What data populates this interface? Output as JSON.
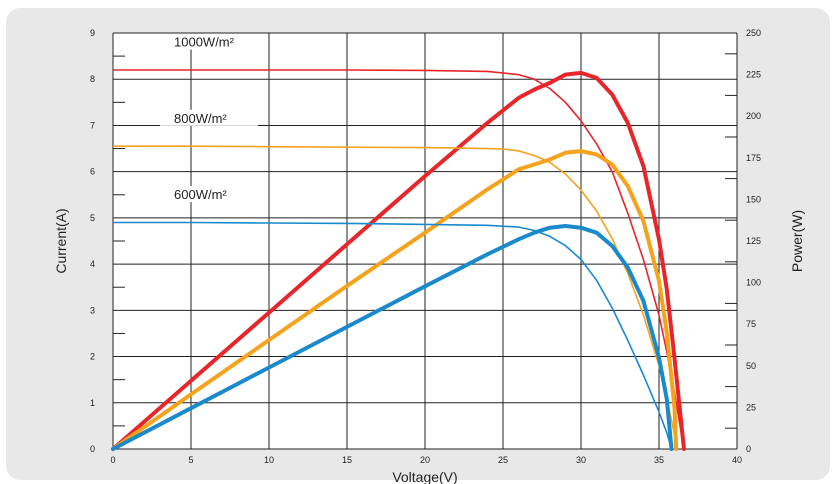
{
  "chart_data": {
    "type": "line",
    "xlabel": "Voltage(V)",
    "ylabel_left": "Current(A)",
    "ylabel_right": "Power(W)",
    "xlim": [
      0,
      40
    ],
    "ylim_left": [
      0,
      9
    ],
    "ylim_right": [
      0,
      250
    ],
    "xticks": [
      "0",
      "5",
      "10",
      "15",
      "20",
      "25",
      "30",
      "35",
      "40"
    ],
    "yticks_left": [
      "0",
      "1",
      "2",
      "3",
      "4",
      "5",
      "6",
      "7",
      "8",
      "9"
    ],
    "yticks_right": [
      "0",
      "25",
      "50",
      "75",
      "100",
      "125",
      "150",
      "175",
      "200",
      "225",
      "250"
    ],
    "grid": true,
    "series": [
      {
        "name": "1000W/m²",
        "color": "#e8262a",
        "iv": [
          [
            0,
            8.2
          ],
          [
            5,
            8.2
          ],
          [
            10,
            8.2
          ],
          [
            15,
            8.2
          ],
          [
            20,
            8.19
          ],
          [
            24,
            8.17
          ],
          [
            26,
            8.1
          ],
          [
            27,
            8.0
          ],
          [
            28,
            7.8
          ],
          [
            29,
            7.5
          ],
          [
            30,
            7.1
          ],
          [
            31,
            6.6
          ],
          [
            32,
            6.0
          ],
          [
            33,
            5.1
          ],
          [
            34,
            4.1
          ],
          [
            35,
            2.9
          ],
          [
            35.5,
            2.1
          ],
          [
            36,
            1.2
          ],
          [
            36.5,
            0.2
          ],
          [
            36.6,
            0
          ]
        ],
        "pv": [
          [
            0,
            0
          ],
          [
            5,
            41
          ],
          [
            10,
            82
          ],
          [
            15,
            123
          ],
          [
            20,
            164
          ],
          [
            24,
            196
          ],
          [
            26,
            211
          ],
          [
            27,
            216
          ],
          [
            28,
            220
          ],
          [
            29,
            225
          ],
          [
            30,
            226
          ],
          [
            31,
            223
          ],
          [
            32,
            213
          ],
          [
            33,
            196
          ],
          [
            34,
            170
          ],
          [
            35,
            126
          ],
          [
            35.5,
            96
          ],
          [
            36,
            54
          ],
          [
            36.5,
            9
          ],
          [
            36.6,
            0
          ]
        ]
      },
      {
        "name": "800W/m²",
        "color": "#f5a21c",
        "iv": [
          [
            0,
            6.55
          ],
          [
            5,
            6.55
          ],
          [
            10,
            6.54
          ],
          [
            15,
            6.53
          ],
          [
            20,
            6.52
          ],
          [
            24,
            6.5
          ],
          [
            25,
            6.49
          ],
          [
            26,
            6.45
          ],
          [
            27,
            6.35
          ],
          [
            28,
            6.2
          ],
          [
            29,
            5.95
          ],
          [
            30,
            5.6
          ],
          [
            31,
            5.15
          ],
          [
            32,
            4.55
          ],
          [
            33,
            3.8
          ],
          [
            34,
            2.9
          ],
          [
            35,
            1.8
          ],
          [
            35.5,
            1.1
          ],
          [
            36,
            0.3
          ],
          [
            36.1,
            0
          ]
        ],
        "pv": [
          [
            0,
            0
          ],
          [
            5,
            32.8
          ],
          [
            10,
            65.5
          ],
          [
            15,
            98
          ],
          [
            20,
            130
          ],
          [
            24,
            156
          ],
          [
            25,
            162
          ],
          [
            26,
            168
          ],
          [
            27,
            171
          ],
          [
            28,
            174
          ],
          [
            29,
            178
          ],
          [
            30,
            179
          ],
          [
            31,
            177
          ],
          [
            32,
            171
          ],
          [
            33,
            158
          ],
          [
            34,
            137
          ],
          [
            35,
            101
          ],
          [
            35.5,
            70
          ],
          [
            36,
            24
          ],
          [
            36.1,
            0
          ]
        ]
      },
      {
        "name": "600W/m²",
        "color": "#1a8acd",
        "iv": [
          [
            0,
            4.9
          ],
          [
            5,
            4.9
          ],
          [
            10,
            4.89
          ],
          [
            15,
            4.88
          ],
          [
            20,
            4.86
          ],
          [
            24,
            4.84
          ],
          [
            26,
            4.8
          ],
          [
            27,
            4.73
          ],
          [
            28,
            4.6
          ],
          [
            29,
            4.4
          ],
          [
            30,
            4.1
          ],
          [
            31,
            3.65
          ],
          [
            32,
            3.05
          ],
          [
            33,
            2.35
          ],
          [
            34,
            1.6
          ],
          [
            35,
            0.8
          ],
          [
            35.5,
            0.35
          ],
          [
            35.8,
            0
          ]
        ],
        "pv": [
          [
            0,
            0
          ],
          [
            5,
            24.5
          ],
          [
            10,
            49
          ],
          [
            15,
            73.4
          ],
          [
            20,
            97.8
          ],
          [
            24,
            117
          ],
          [
            26,
            126
          ],
          [
            27,
            130
          ],
          [
            28,
            133
          ],
          [
            29,
            134
          ],
          [
            30,
            133
          ],
          [
            31,
            130
          ],
          [
            32,
            122
          ],
          [
            33,
            109
          ],
          [
            34,
            89
          ],
          [
            35,
            55
          ],
          [
            35.5,
            30
          ],
          [
            35.8,
            0
          ]
        ]
      }
    ]
  }
}
